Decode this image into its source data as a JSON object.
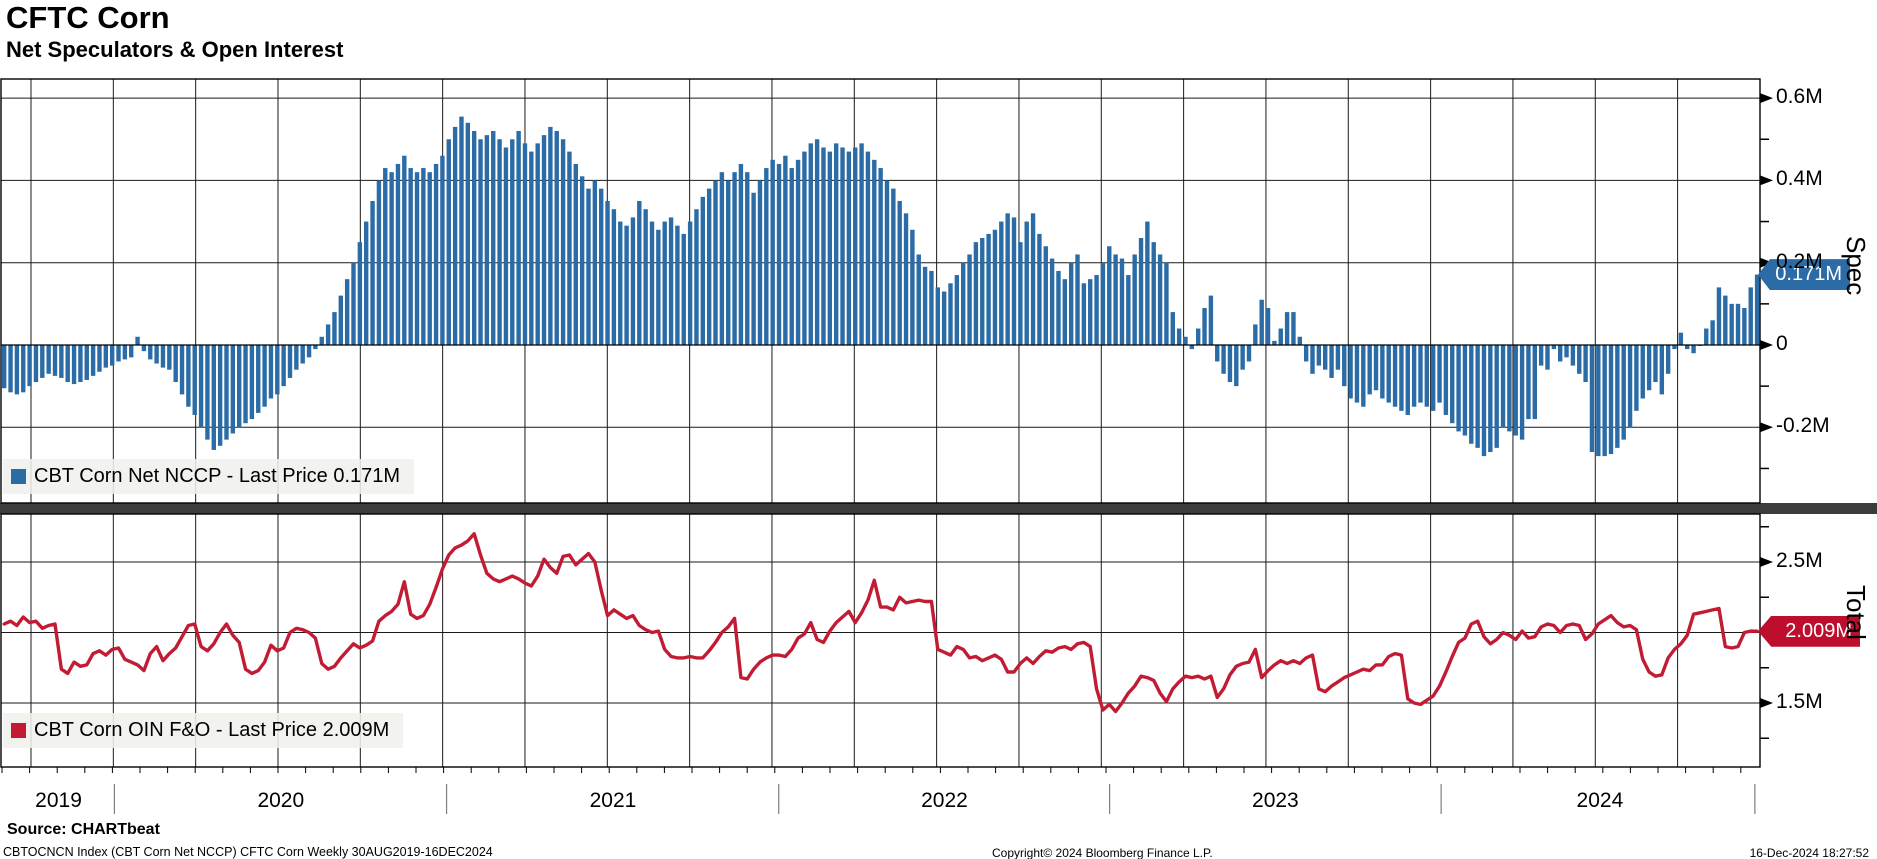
{
  "header": {
    "title": "CFTC Corn",
    "subtitle": "Net Speculators & Open Interest"
  },
  "footer": {
    "source": "Source: CHARTbeat",
    "meta": "CBTOCNCN Index (CBT Corn Net NCCP) CFTC Corn  Weekly 30AUG2019-16DEC2024",
    "copyright": "Copyright© 2024 Bloomberg Finance L.P.",
    "timestamp": "16-Dec-2024 18:27:52"
  },
  "chart_data": [
    {
      "type": "bar",
      "name": "CBT Corn Net NCCP",
      "legend": "CBT Corn Net NCCP - Last Price 0.171M",
      "axis_label": "Spec",
      "color": "#2B6CA6",
      "flag_color": "#2B6CA6",
      "last_price": 0.171,
      "last_price_label": "0.171M",
      "unit": "M contracts",
      "ylim": [
        -0.384,
        0.646
      ],
      "yticks": [
        {
          "value": 0.6,
          "label": "0.6M"
        },
        {
          "value": 0.4,
          "label": "0.4M"
        },
        {
          "value": 0.2,
          "label": "0.2M"
        },
        {
          "value": 0,
          "label": "0"
        },
        {
          "value": -0.2,
          "label": "-0.2M"
        }
      ],
      "minor_ticks": [
        0.5,
        0.3,
        0.1,
        -0.1,
        -0.3
      ],
      "grid": true,
      "values": [
        -0.105,
        -0.115,
        -0.12,
        -0.115,
        -0.1,
        -0.09,
        -0.08,
        -0.07,
        -0.075,
        -0.08,
        -0.09,
        -0.095,
        -0.09,
        -0.085,
        -0.075,
        -0.065,
        -0.055,
        -0.05,
        -0.04,
        -0.035,
        -0.03,
        0.02,
        -0.015,
        -0.035,
        -0.045,
        -0.055,
        -0.06,
        -0.09,
        -0.12,
        -0.15,
        -0.17,
        -0.2,
        -0.23,
        -0.255,
        -0.245,
        -0.23,
        -0.215,
        -0.2,
        -0.19,
        -0.18,
        -0.165,
        -0.15,
        -0.13,
        -0.12,
        -0.1,
        -0.08,
        -0.06,
        -0.045,
        -0.03,
        -0.01,
        0.02,
        0.05,
        0.08,
        0.12,
        0.16,
        0.2,
        0.25,
        0.3,
        0.35,
        0.4,
        0.43,
        0.42,
        0.44,
        0.46,
        0.43,
        0.42,
        0.43,
        0.42,
        0.44,
        0.46,
        0.5,
        0.53,
        0.555,
        0.54,
        0.52,
        0.5,
        0.51,
        0.52,
        0.5,
        0.48,
        0.5,
        0.52,
        0.49,
        0.47,
        0.49,
        0.51,
        0.53,
        0.52,
        0.5,
        0.47,
        0.44,
        0.41,
        0.38,
        0.4,
        0.38,
        0.35,
        0.33,
        0.3,
        0.29,
        0.31,
        0.35,
        0.33,
        0.3,
        0.28,
        0.3,
        0.31,
        0.29,
        0.27,
        0.3,
        0.33,
        0.36,
        0.38,
        0.4,
        0.42,
        0.4,
        0.42,
        0.44,
        0.42,
        0.37,
        0.4,
        0.43,
        0.45,
        0.44,
        0.46,
        0.43,
        0.45,
        0.47,
        0.49,
        0.5,
        0.48,
        0.47,
        0.49,
        0.48,
        0.47,
        0.48,
        0.49,
        0.47,
        0.45,
        0.43,
        0.4,
        0.38,
        0.35,
        0.32,
        0.28,
        0.22,
        0.19,
        0.18,
        0.14,
        0.13,
        0.15,
        0.17,
        0.2,
        0.22,
        0.25,
        0.26,
        0.27,
        0.28,
        0.3,
        0.32,
        0.31,
        0.25,
        0.3,
        0.32,
        0.27,
        0.24,
        0.21,
        0.18,
        0.16,
        0.2,
        0.22,
        0.15,
        0.16,
        0.17,
        0.2,
        0.24,
        0.22,
        0.21,
        0.17,
        0.22,
        0.26,
        0.3,
        0.25,
        0.22,
        0.2,
        0.08,
        0.04,
        0.02,
        -0.01,
        0.04,
        0.09,
        0.12,
        -0.04,
        -0.07,
        -0.09,
        -0.1,
        -0.06,
        -0.04,
        0.05,
        0.11,
        0.09,
        0.01,
        0.04,
        0.08,
        0.08,
        0.02,
        -0.04,
        -0.07,
        -0.05,
        -0.06,
        -0.08,
        -0.06,
        -0.1,
        -0.13,
        -0.14,
        -0.15,
        -0.12,
        -0.11,
        -0.13,
        -0.14,
        -0.15,
        -0.16,
        -0.17,
        -0.15,
        -0.14,
        -0.15,
        -0.16,
        -0.14,
        -0.17,
        -0.19,
        -0.21,
        -0.22,
        -0.24,
        -0.25,
        -0.27,
        -0.26,
        -0.25,
        -0.2,
        -0.21,
        -0.22,
        -0.23,
        -0.18,
        -0.18,
        -0.05,
        -0.06,
        -0.01,
        -0.04,
        -0.03,
        -0.05,
        -0.07,
        -0.09,
        -0.26,
        -0.27,
        -0.27,
        -0.265,
        -0.25,
        -0.23,
        -0.2,
        -0.16,
        -0.13,
        -0.11,
        -0.09,
        -0.12,
        -0.07,
        -0.01,
        0.03,
        -0.01,
        -0.02,
        0.0,
        0.04,
        0.06,
        0.14,
        0.12,
        0.1,
        0.1,
        0.09,
        0.14,
        0.171
      ]
    },
    {
      "type": "line",
      "name": "CBT Corn OIN F&O",
      "legend": "CBT Corn OIN F&O - Last Price 2.009M",
      "axis_label": "Total",
      "color": "#C21B34",
      "flag_color": "#BE0E2E",
      "last_price": 2.009,
      "last_price_label": "2.009M",
      "unit": "M contracts",
      "ylim": [
        1.046,
        2.84
      ],
      "yticks": [
        {
          "value": 2.5,
          "label": "2.5M"
        },
        {
          "value": 1.5,
          "label": "1.5M"
        }
      ],
      "gridline_values": [
        2.5,
        2.0,
        1.5
      ],
      "minor_ticks": [
        2.75,
        2.25,
        1.75,
        1.25
      ],
      "grid": true,
      "values": [
        2.06,
        2.08,
        2.05,
        2.11,
        2.07,
        2.08,
        2.03,
        2.05,
        2.06,
        1.74,
        1.71,
        1.79,
        1.76,
        1.77,
        1.85,
        1.87,
        1.84,
        1.88,
        1.89,
        1.81,
        1.79,
        1.77,
        1.73,
        1.85,
        1.9,
        1.8,
        1.85,
        1.89,
        1.97,
        2.05,
        2.06,
        1.9,
        1.87,
        1.92,
        2.0,
        2.06,
        1.98,
        1.93,
        1.74,
        1.71,
        1.73,
        1.79,
        1.91,
        1.87,
        1.89,
        2.0,
        2.03,
        2.02,
        2.0,
        1.96,
        1.78,
        1.74,
        1.76,
        1.82,
        1.87,
        1.92,
        1.89,
        1.91,
        1.94,
        2.08,
        2.12,
        2.15,
        2.2,
        2.36,
        2.13,
        2.1,
        2.12,
        2.2,
        2.32,
        2.45,
        2.55,
        2.6,
        2.62,
        2.65,
        2.7,
        2.55,
        2.42,
        2.38,
        2.36,
        2.38,
        2.4,
        2.38,
        2.35,
        2.33,
        2.4,
        2.52,
        2.46,
        2.42,
        2.54,
        2.55,
        2.48,
        2.52,
        2.56,
        2.5,
        2.3,
        2.12,
        2.16,
        2.13,
        2.1,
        2.12,
        2.05,
        2.02,
        2.0,
        2.01,
        1.88,
        1.83,
        1.82,
        1.82,
        1.83,
        1.82,
        1.82,
        1.87,
        1.93,
        2.0,
        2.04,
        2.1,
        1.68,
        1.67,
        1.74,
        1.79,
        1.82,
        1.84,
        1.84,
        1.83,
        1.88,
        1.96,
        1.99,
        2.07,
        1.95,
        1.93,
        2.01,
        2.07,
        2.11,
        2.15,
        2.07,
        2.14,
        2.23,
        2.37,
        2.18,
        2.18,
        2.16,
        2.25,
        2.21,
        2.22,
        2.23,
        2.22,
        2.22,
        1.88,
        1.86,
        1.84,
        1.9,
        1.88,
        1.82,
        1.83,
        1.8,
        1.82,
        1.84,
        1.81,
        1.72,
        1.72,
        1.78,
        1.82,
        1.78,
        1.83,
        1.87,
        1.86,
        1.89,
        1.9,
        1.88,
        1.92,
        1.93,
        1.9,
        1.6,
        1.45,
        1.49,
        1.44,
        1.5,
        1.57,
        1.62,
        1.69,
        1.68,
        1.66,
        1.57,
        1.51,
        1.6,
        1.65,
        1.69,
        1.68,
        1.69,
        1.67,
        1.69,
        1.54,
        1.6,
        1.7,
        1.76,
        1.78,
        1.79,
        1.88,
        1.68,
        1.73,
        1.77,
        1.8,
        1.78,
        1.8,
        1.78,
        1.82,
        1.84,
        1.6,
        1.58,
        1.62,
        1.65,
        1.68,
        1.7,
        1.72,
        1.74,
        1.73,
        1.77,
        1.77,
        1.83,
        1.85,
        1.84,
        1.53,
        1.5,
        1.49,
        1.52,
        1.55,
        1.62,
        1.72,
        1.83,
        1.93,
        1.96,
        2.06,
        2.08,
        1.97,
        1.92,
        1.95,
        2.0,
        1.98,
        1.95,
        2.01,
        1.96,
        1.97,
        2.04,
        2.06,
        2.05,
        2.0,
        2.05,
        2.06,
        2.05,
        1.95,
        1.99,
        2.06,
        2.09,
        2.12,
        2.07,
        2.04,
        2.05,
        2.02,
        1.81,
        1.72,
        1.69,
        1.7,
        1.82,
        1.88,
        1.92,
        1.98,
        2.13,
        2.14,
        2.15,
        2.16,
        2.17,
        1.9,
        1.89,
        1.9,
        2.0,
        2.01,
        2.009
      ]
    }
  ],
  "xaxis": {
    "frequency": "weekly",
    "range": "30AUG2019-16DEC2024",
    "years": [
      {
        "label": "2019",
        "mid_week": 8.9
      },
      {
        "label": "2020",
        "mid_week": 43.9
      },
      {
        "label": "2021",
        "mid_week": 96.2
      },
      {
        "label": "2022",
        "mid_week": 148.4
      },
      {
        "label": "2023",
        "mid_week": 200.5
      },
      {
        "label": "2024",
        "mid_week": 251.6
      }
    ],
    "year_boundary_weeks": [
      17.7,
      70.0,
      122.3,
      174.4,
      226.6,
      276.0
    ]
  }
}
